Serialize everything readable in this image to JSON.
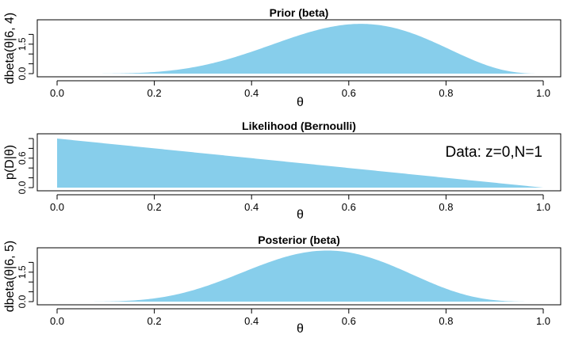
{
  "chart_data": [
    {
      "type": "area",
      "title": "Prior (beta)",
      "xlabel": "θ",
      "ylabel": "dbeta(θ|6, 4)",
      "distribution": {
        "a": 6,
        "b": 4
      },
      "xlim": [
        0,
        1
      ],
      "ylim": [
        0,
        2.5
      ],
      "x_ticks": [
        "0.0",
        "0.2",
        "0.4",
        "0.6",
        "0.8",
        "1.0"
      ],
      "y_ticks": [
        "0.0",
        "1.5"
      ],
      "fill_color": "#87CEEB",
      "annotation": ""
    },
    {
      "type": "area",
      "title": "Likelihood (Bernoulli)",
      "xlabel": "θ",
      "ylabel": "p(D|θ)",
      "distribution": {
        "z": 0,
        "N": 1
      },
      "xlim": [
        0,
        1
      ],
      "ylim": [
        0,
        1
      ],
      "x_ticks": [
        "0.0",
        "0.2",
        "0.4",
        "0.6",
        "0.8",
        "1.0"
      ],
      "y_ticks": [
        "0.0",
        "0.6"
      ],
      "fill_color": "#87CEEB",
      "annotation": "Data: z=0,N=1"
    },
    {
      "type": "area",
      "title": "Posterior (beta)",
      "xlabel": "θ",
      "ylabel": "dbeta(θ|6, 5)",
      "distribution": {
        "a": 6,
        "b": 5
      },
      "xlim": [
        0,
        1
      ],
      "ylim": [
        0,
        2.5
      ],
      "x_ticks": [
        "0.0",
        "0.2",
        "0.4",
        "0.6",
        "0.8",
        "1.0"
      ],
      "y_ticks": [
        "0.0",
        "1.5"
      ],
      "fill_color": "#87CEEB",
      "annotation": ""
    }
  ]
}
